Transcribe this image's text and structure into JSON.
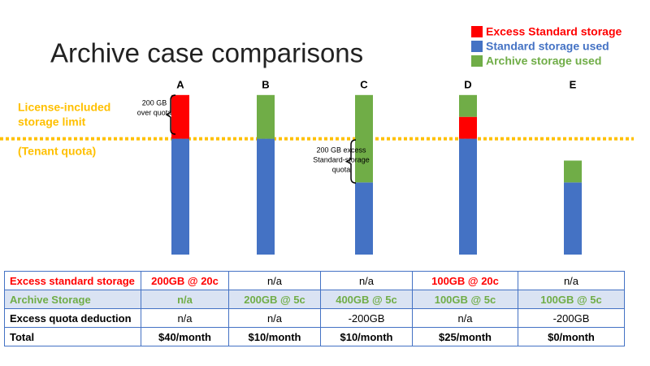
{
  "chart_data": {
    "type": "stacked_bar",
    "title": "Archive case comparisons",
    "categories": [
      "A",
      "B",
      "C",
      "D",
      "E"
    ],
    "series": [
      {
        "name": "Standard storage used",
        "color": "#4472c4",
        "values": [
          530,
          530,
          330,
          530,
          330
        ]
      },
      {
        "name": "Excess Standard storage",
        "color": "#ff0000",
        "values": [
          200,
          null,
          null,
          100,
          null
        ]
      },
      {
        "name": "Archive storage used",
        "color": "#70ad47",
        "values": [
          null,
          200,
          400,
          100,
          100
        ]
      }
    ],
    "ylim": [
      0,
      800
    ],
    "quota": {
      "value": 530,
      "color": "#ffc000",
      "label": [
        "License-included",
        "storage limit"
      ],
      "note": "(Tenant quota)"
    },
    "annotations": [
      [
        "200 GB",
        "over quota"
      ],
      [
        "200 GB excess",
        "Standard-storage",
        "quota"
      ]
    ]
  },
  "table": {
    "rows": [
      [
        "Excess standard storage",
        "200GB @ 20c",
        "n/a",
        "n/a",
        "100GB @ 20c",
        "n/a"
      ],
      [
        "Archive Storage",
        "n/a",
        "200GB @ 5c",
        "400GB @ 5c",
        "100GB @ 5c",
        "100GB @ 5c"
      ],
      [
        "Excess quota deduction",
        "n/a",
        "n/a",
        "-200GB",
        "n/a",
        "-200GB"
      ],
      [
        "Total",
        "$40/month",
        "$10/month",
        "$10/month",
        "$25/month",
        "$0/month"
      ]
    ]
  }
}
